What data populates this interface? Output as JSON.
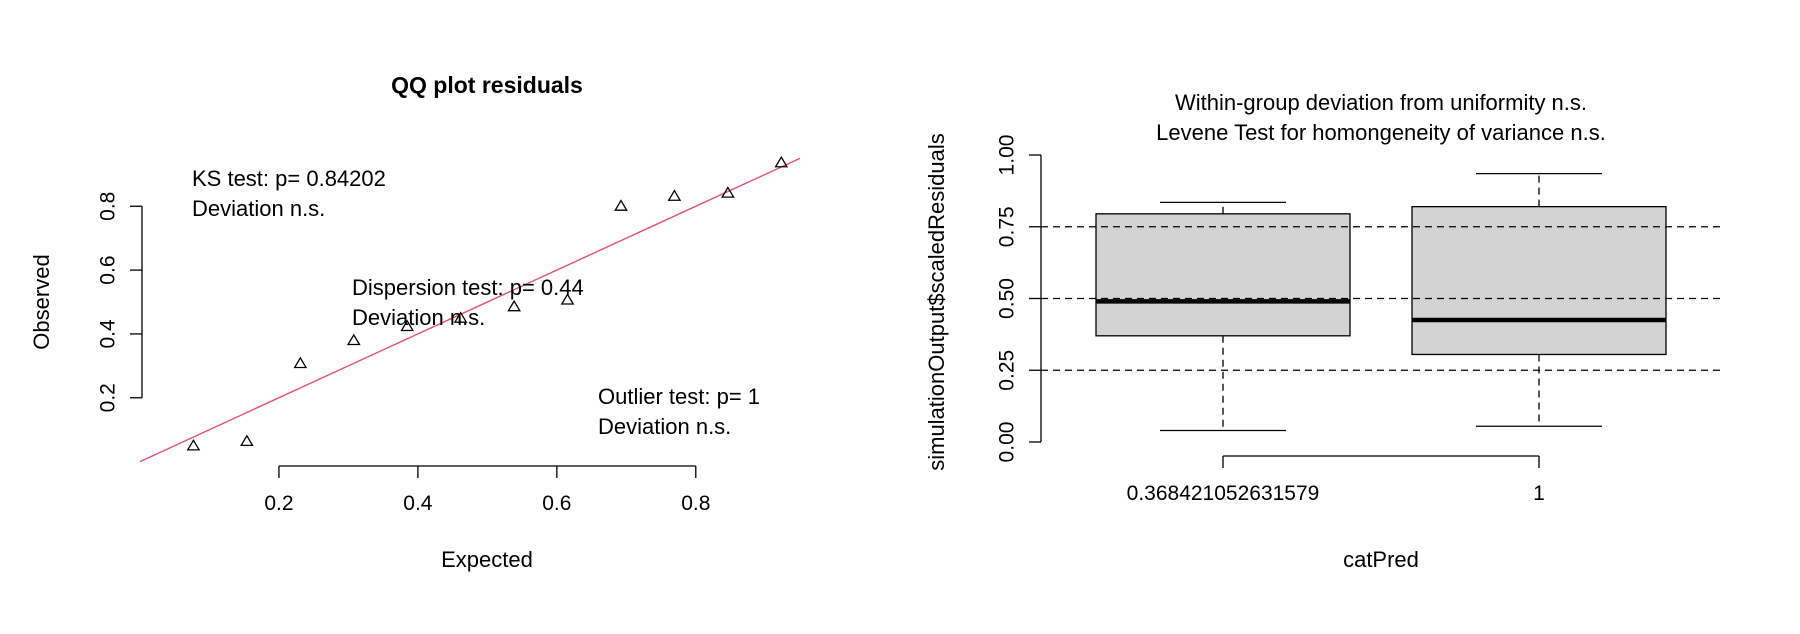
{
  "chart_data": [
    {
      "type": "scatter",
      "title": "QQ plot residuals",
      "xlabel": "Expected",
      "ylabel": "Observed",
      "xlim": [
        0.0,
        0.95
      ],
      "ylim": [
        0.03,
        0.97
      ],
      "x_ticks": [
        "0.2",
        "0.4",
        "0.6",
        "0.8"
      ],
      "y_ticks": [
        "0.2",
        "0.4",
        "0.6",
        "0.8"
      ],
      "points": {
        "x": [
          0.0769,
          0.1538,
          0.2308,
          0.3077,
          0.3846,
          0.4615,
          0.5385,
          0.6154,
          0.6923,
          0.7692,
          0.8462,
          0.9231
        ],
        "y": [
          0.048,
          0.062,
          0.306,
          0.378,
          0.422,
          0.448,
          0.484,
          0.505,
          0.799,
          0.83,
          0.84,
          0.935
        ]
      },
      "reference_line": {
        "from": [
          0.0,
          0.0
        ],
        "to": [
          1.0,
          1.0
        ],
        "color": "#DF536B"
      },
      "point_marker": "triangle",
      "grid": false,
      "annotations": [
        {
          "lines": [
            "KS test: p= 0.84202",
            "Deviation  n.s."
          ]
        },
        {
          "lines": [
            "Dispersion test: p= 0.44",
            "Deviation  n.s."
          ]
        },
        {
          "lines": [
            "Outlier test: p= 1",
            "Deviation  n.s."
          ]
        }
      ]
    },
    {
      "type": "box",
      "title_lines": [
        "Within-group deviation from uniformity n.s.",
        "Levene Test for homongeneity of variance n.s."
      ],
      "xlabel": "catPred",
      "ylabel": "simulationOutput$scaledResiduals",
      "ylim": [
        0.0,
        1.0
      ],
      "y_ticks": [
        "0.00",
        "0.25",
        "0.50",
        "0.75",
        "1.00"
      ],
      "reference_lines": [
        0.25,
        0.5,
        0.75
      ],
      "box_fill": "#D3D3D3",
      "categories": [
        "0.368421052631579",
        "1"
      ],
      "boxes": [
        {
          "whisker_low": 0.04,
          "q1": 0.37,
          "median": 0.49,
          "q3": 0.795,
          "whisker_high": 0.835
        },
        {
          "whisker_low": 0.055,
          "q1": 0.305,
          "median": 0.425,
          "q3": 0.82,
          "whisker_high": 0.935
        }
      ],
      "grid": false
    }
  ]
}
